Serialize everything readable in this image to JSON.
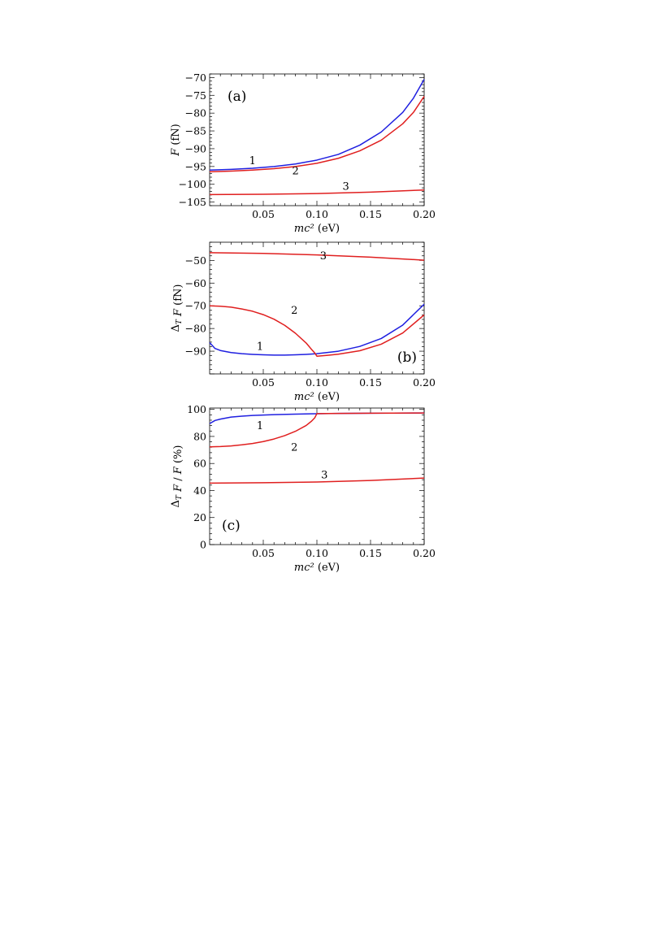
{
  "chart_data": [
    {
      "type": "line",
      "panel_label": "(a)",
      "xlabel": "mc² (eV)",
      "ylabel": "F (fN)",
      "xlim": [
        0.0,
        0.2
      ],
      "ylim": [
        -106,
        -69
      ],
      "x_ticks": [
        0.05,
        0.1,
        0.15,
        0.2
      ],
      "x_tick_labels": [
        "0.05",
        "0.10",
        "0.15",
        "0.20"
      ],
      "y_ticks": [
        -105,
        -100,
        -95,
        -90,
        -85,
        -80,
        -75,
        -70
      ],
      "y_tick_labels": [
        "−105",
        "−100",
        "−95",
        "−90",
        "−85",
        "−80",
        "−75",
        "−70"
      ],
      "series": [
        {
          "label": "1",
          "color": "#1f1fe0",
          "label_at": [
            0.04,
            -94.3
          ],
          "x": [
            0.0,
            0.02,
            0.04,
            0.06,
            0.08,
            0.1,
            0.12,
            0.14,
            0.16,
            0.18,
            0.19,
            0.2
          ],
          "y": [
            -96.0,
            -95.8,
            -95.5,
            -95.0,
            -94.3,
            -93.2,
            -91.6,
            -89.0,
            -85.3,
            -79.8,
            -75.8,
            -70.5
          ]
        },
        {
          "label": "2",
          "color": "#e01f1f",
          "label_at": [
            0.08,
            -97.2
          ],
          "x": [
            0.0,
            0.02,
            0.04,
            0.06,
            0.08,
            0.1,
            0.12,
            0.14,
            0.16,
            0.18,
            0.19,
            0.2
          ],
          "y": [
            -96.5,
            -96.3,
            -96.0,
            -95.6,
            -95.0,
            -94.1,
            -92.7,
            -90.6,
            -87.6,
            -83.0,
            -79.8,
            -75.3
          ]
        },
        {
          "label": "3",
          "color": "#e01f1f",
          "label_at": [
            0.127,
            -101.5
          ],
          "x": [
            0.0,
            0.05,
            0.1,
            0.15,
            0.2
          ],
          "y": [
            -102.9,
            -102.8,
            -102.6,
            -102.2,
            -101.6
          ]
        }
      ]
    },
    {
      "type": "line",
      "panel_label": "(b)",
      "xlabel": "mc² (eV)",
      "ylabel": "Δ_T F (fN)",
      "xlim": [
        0.0,
        0.2
      ],
      "ylim": [
        -100,
        -42
      ],
      "x_ticks": [
        0.05,
        0.1,
        0.15,
        0.2
      ],
      "x_tick_labels": [
        "0.05",
        "0.10",
        "0.15",
        "0.20"
      ],
      "y_ticks": [
        -90,
        -80,
        -70,
        -60,
        -50
      ],
      "y_tick_labels": [
        "−90",
        "−80",
        "−70",
        "−60",
        "−50"
      ],
      "series": [
        {
          "label": "1",
          "color": "#1f1fe0",
          "label_at": [
            0.047,
            -89.5
          ],
          "x": [
            0.0,
            0.005,
            0.01,
            0.02,
            0.03,
            0.04,
            0.05,
            0.06,
            0.07,
            0.08,
            0.09,
            0.1,
            0.12,
            0.14,
            0.16,
            0.18,
            0.2
          ],
          "y": [
            -86.2,
            -88.8,
            -89.7,
            -90.6,
            -91.1,
            -91.4,
            -91.6,
            -91.7,
            -91.7,
            -91.6,
            -91.4,
            -91.1,
            -90.0,
            -87.9,
            -84.4,
            -78.5,
            -69.3
          ]
        },
        {
          "label": "2",
          "color": "#e01f1f",
          "label_at": [
            0.079,
            -73.5
          ],
          "x": [
            0.0,
            0.01,
            0.02,
            0.03,
            0.04,
            0.05,
            0.06,
            0.07,
            0.08,
            0.09,
            0.095,
            0.098,
            0.1,
            0.11,
            0.12,
            0.14,
            0.16,
            0.18,
            0.2
          ],
          "y": [
            -70.0,
            -70.2,
            -70.6,
            -71.4,
            -72.4,
            -73.9,
            -75.9,
            -78.6,
            -82.1,
            -86.4,
            -89.2,
            -90.8,
            -92.2,
            -91.8,
            -91.3,
            -89.8,
            -86.9,
            -82.0,
            -74.0
          ]
        },
        {
          "label": "3",
          "color": "#e01f1f",
          "label_at": [
            0.106,
            -49.6
          ],
          "x": [
            0.0,
            0.05,
            0.1,
            0.15,
            0.2
          ],
          "y": [
            -46.6,
            -46.9,
            -47.6,
            -48.6,
            -49.9
          ]
        }
      ]
    },
    {
      "type": "line",
      "panel_label": "(c)",
      "xlabel": "mc² (eV)",
      "ylabel": "Δ_T F / F (%)",
      "xlim": [
        0.0,
        0.2
      ],
      "ylim": [
        0,
        101
      ],
      "x_ticks": [
        0.05,
        0.1,
        0.15,
        0.2
      ],
      "x_tick_labels": [
        "0.05",
        "0.10",
        "0.15",
        "0.20"
      ],
      "y_ticks": [
        0,
        20,
        40,
        60,
        80,
        100
      ],
      "y_tick_labels": [
        "0",
        "20",
        "40",
        "60",
        "80",
        "100"
      ],
      "series": [
        {
          "label": "1",
          "color": "#1f1fe0",
          "label_at": [
            0.047,
            85.5
          ],
          "x": [
            0.0,
            0.005,
            0.01,
            0.02,
            0.03,
            0.04,
            0.05,
            0.06,
            0.08,
            0.1,
            0.12,
            0.15,
            0.2
          ],
          "y": [
            89.5,
            91.8,
            92.8,
            94.3,
            95.0,
            95.5,
            95.8,
            96.1,
            96.5,
            96.8,
            97.0,
            97.2,
            97.3
          ]
        },
        {
          "label": "2",
          "color": "#e01f1f",
          "label_at": [
            0.079,
            69.5
          ],
          "x": [
            0.0,
            0.01,
            0.02,
            0.03,
            0.04,
            0.05,
            0.06,
            0.07,
            0.08,
            0.09,
            0.095,
            0.098,
            0.1,
            0.12,
            0.15,
            0.2
          ],
          "y": [
            72.3,
            72.5,
            73.0,
            73.8,
            74.8,
            76.2,
            78.1,
            80.6,
            83.8,
            88.1,
            91.3,
            93.8,
            96.9,
            97.0,
            97.2,
            97.3
          ]
        },
        {
          "label": "3",
          "color": "#e01f1f",
          "label_at": [
            0.107,
            49.0
          ],
          "x": [
            0.0,
            0.05,
            0.1,
            0.15,
            0.2
          ],
          "y": [
            45.5,
            45.8,
            46.3,
            47.4,
            49.2
          ]
        }
      ]
    }
  ]
}
